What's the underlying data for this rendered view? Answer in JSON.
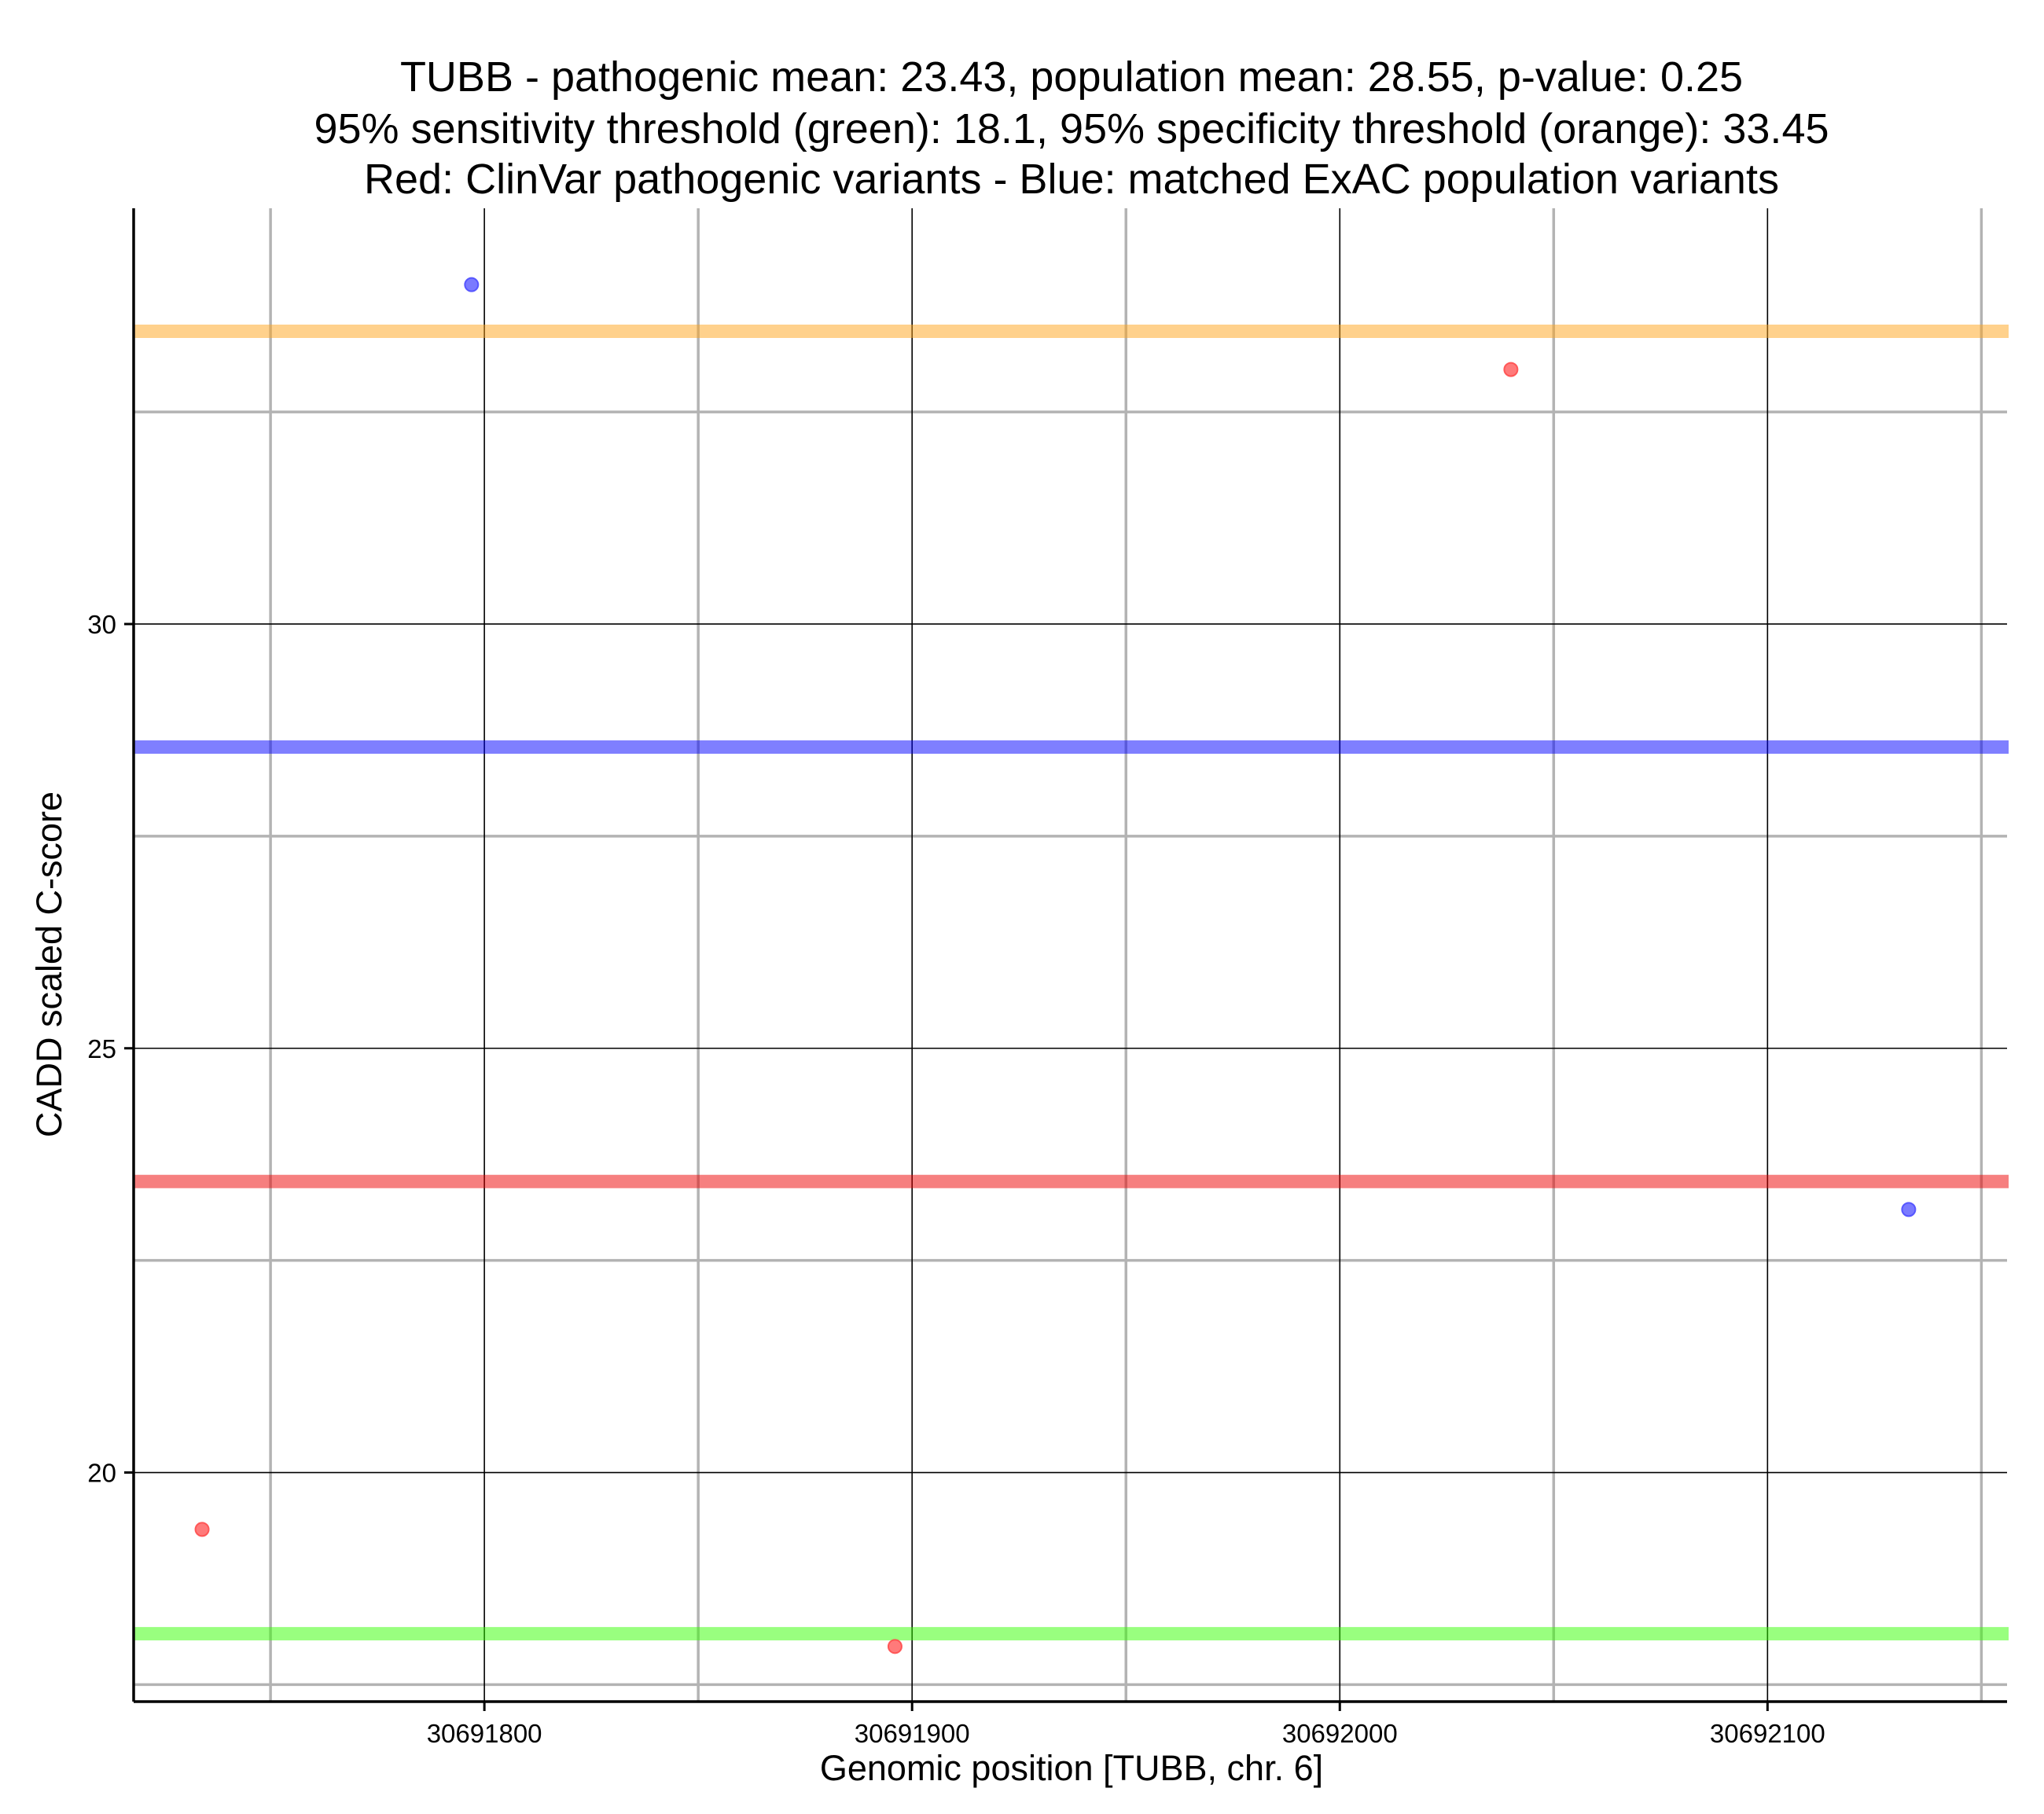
{
  "chart_data": {
    "type": "scatter",
    "title_lines": [
      "TUBB - pathogenic mean: 23.43, population mean: 28.55, p-value: 0.25",
      "95% sensitivity threshold (green): 18.1, 95% specificity threshold (orange): 33.45",
      "Red: ClinVar pathogenic variants - Blue: matched ExAC population variants"
    ],
    "xlabel": "Genomic position [TUBB, chr. 6]",
    "ylabel": "CADD scaled C-score",
    "xlim": [
      30691718,
      30692156
    ],
    "ylim": [
      17.3,
      34.9
    ],
    "x_ticks": [
      30691800,
      30691900,
      30692000,
      30692100
    ],
    "x_tick_labels": [
      "30691800",
      "30691900",
      "30692000",
      "30692100"
    ],
    "x_minor_grid": [
      30691750,
      30691850,
      30691950,
      30692050,
      30692150
    ],
    "y_ticks": [
      20,
      25,
      30
    ],
    "y_tick_labels": [
      "20",
      "25",
      "30"
    ],
    "y_minor_grid": [
      17.5,
      22.5,
      27.5,
      32.5
    ],
    "grid": true,
    "series": [
      {
        "name": "ClinVar pathogenic variants",
        "color": "#ff4d4d",
        "points": [
          {
            "x": 30691734,
            "y": 19.33
          },
          {
            "x": 30691896,
            "y": 17.95
          },
          {
            "x": 30692040,
            "y": 33.0
          }
        ]
      },
      {
        "name": "matched ExAC population variants",
        "color": "#4d4dff",
        "points": [
          {
            "x": 30691797,
            "y": 34.0
          },
          {
            "x": 30692133,
            "y": 23.1
          }
        ]
      }
    ],
    "reference_lines": [
      {
        "name": "95% specificity threshold",
        "y": 33.45,
        "color": "#ffa31a"
      },
      {
        "name": "population mean",
        "y": 28.55,
        "color": "#0000ff"
      },
      {
        "name": "pathogenic mean",
        "y": 23.43,
        "color": "#ee0000"
      },
      {
        "name": "95% sensitivity threshold",
        "y": 18.1,
        "color": "#33ff00"
      }
    ]
  }
}
